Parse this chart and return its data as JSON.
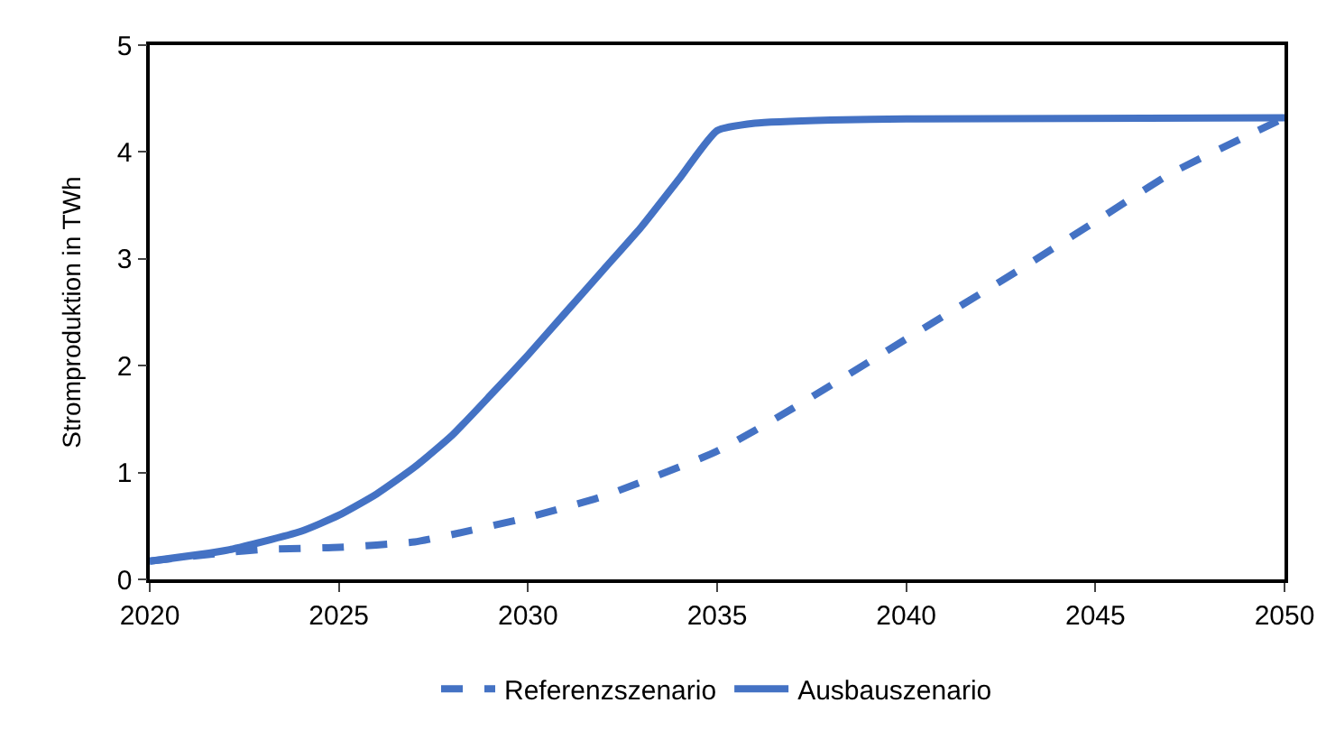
{
  "chart_data": {
    "type": "line",
    "ylabel": "Stromproduktion in TWh",
    "xlim": [
      2020,
      2050
    ],
    "xticks": [
      2020,
      2025,
      2030,
      2035,
      2040,
      2045,
      2050
    ],
    "ylim": [
      0,
      5
    ],
    "yticks": [
      0,
      1,
      2,
      3,
      4,
      5
    ],
    "grid": false,
    "legend": "bottom",
    "marker": "none",
    "series": [
      {
        "name": "Referenzszenario",
        "color": "#4472c4",
        "line_style": "dashed",
        "x": [
          2020,
          2022,
          2023,
          2025,
          2027,
          2028,
          2030,
          2032,
          2035,
          2037,
          2040,
          2043,
          2045,
          2047,
          2049,
          2050
        ],
        "values": [
          0.17,
          0.25,
          0.28,
          0.3,
          0.35,
          0.42,
          0.58,
          0.78,
          1.2,
          1.6,
          2.25,
          2.9,
          3.35,
          3.8,
          4.15,
          4.32
        ]
      },
      {
        "name": "Ausbauszenario",
        "color": "#4472c4",
        "line_style": "solid",
        "x": [
          2020,
          2022,
          2024,
          2025,
          2026,
          2027,
          2028,
          2029,
          2030,
          2031,
          2032,
          2033,
          2034,
          2035,
          2036,
          2038,
          2040,
          2050
        ],
        "values": [
          0.17,
          0.27,
          0.45,
          0.6,
          0.8,
          1.05,
          1.35,
          1.72,
          2.1,
          2.5,
          2.9,
          3.3,
          3.75,
          4.2,
          4.27,
          4.3,
          4.31,
          4.32
        ]
      }
    ]
  }
}
